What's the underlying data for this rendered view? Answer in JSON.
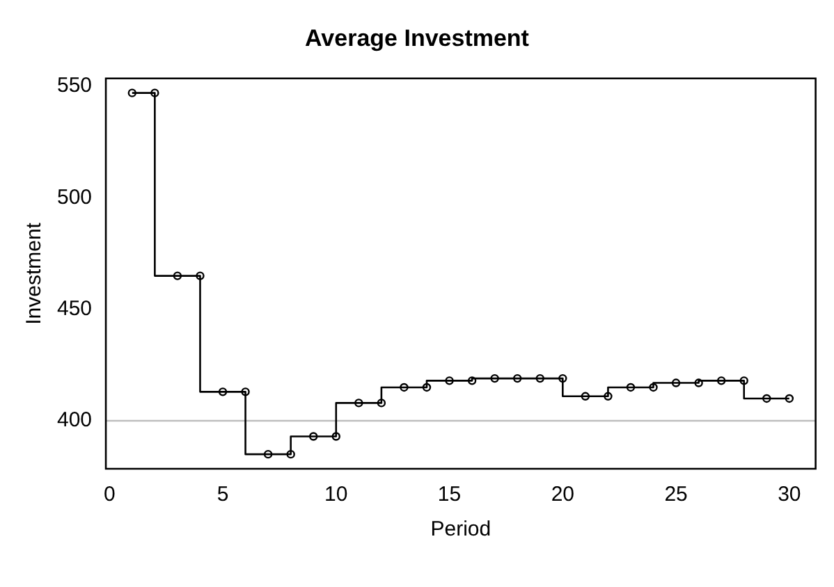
{
  "chart_data": {
    "type": "step",
    "title": "Average Investment",
    "xlabel": "Period",
    "ylabel": "Investment",
    "x": [
      1,
      2,
      3,
      4,
      5,
      6,
      7,
      8,
      9,
      10,
      11,
      12,
      13,
      14,
      15,
      16,
      17,
      18,
      19,
      20,
      21,
      22,
      23,
      24,
      25,
      26,
      27,
      28,
      29,
      30
    ],
    "series": [
      {
        "color": "#000000",
        "values": [
          547,
          547,
          465,
          465,
          413,
          413,
          385,
          385,
          393,
          393,
          408,
          408,
          415,
          415,
          418,
          418,
          419,
          419,
          419,
          419,
          411,
          411,
          415,
          415,
          417,
          417,
          418,
          418,
          410,
          410
        ]
      }
    ],
    "xlim": [
      -0.16,
      31.16
    ],
    "xticks": [
      0,
      5,
      10,
      15,
      20,
      25,
      30
    ],
    "ylim": [
      378.5,
      553.5
    ],
    "yticks": [
      400,
      450,
      500,
      550
    ],
    "ref_lines": [
      {
        "axis": "y",
        "value": 400,
        "color": "#bebebe",
        "line_style": "solid"
      }
    ],
    "marker": "circle",
    "line_style": "solid",
    "grid": false,
    "legend": false
  }
}
